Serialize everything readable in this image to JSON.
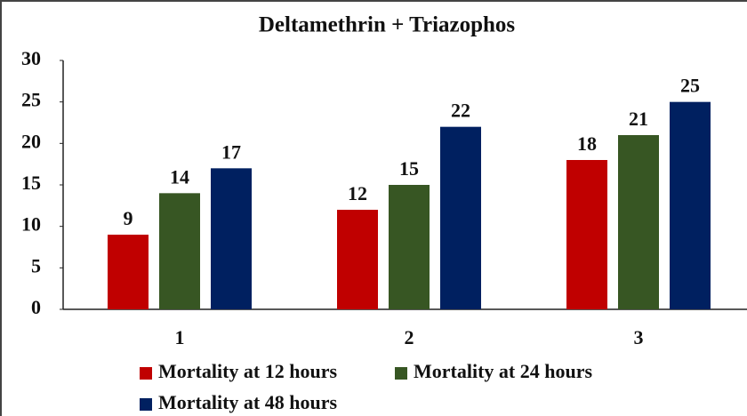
{
  "chart_data": {
    "type": "bar",
    "title": "Deltamethrin + Triazophos",
    "categories": [
      "1",
      "2",
      "3"
    ],
    "series": [
      {
        "name": "Mortality at 12 hours",
        "color": "#c00000",
        "values": [
          9,
          12,
          18
        ]
      },
      {
        "name": "Mortality at 24 hours",
        "color": "#375623",
        "values": [
          14,
          15,
          21
        ]
      },
      {
        "name": "Mortality at 48 hours",
        "color": "#002060",
        "values": [
          17,
          22,
          25
        ]
      }
    ],
    "ylim": [
      0,
      30
    ],
    "yticks": [
      0,
      5,
      10,
      15,
      20,
      25,
      30
    ],
    "grid": false
  }
}
